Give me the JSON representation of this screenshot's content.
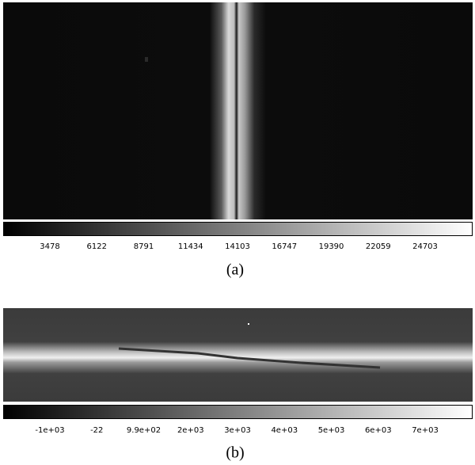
{
  "panels": [
    {
      "colorbar_ticks": [
        "3478",
        "6122",
        "8791",
        "11434",
        "14103",
        "16747",
        "19390",
        "22059",
        "24703"
      ],
      "caption": "(a)"
    },
    {
      "colorbar_ticks": [
        "-1e+03",
        "-22",
        "9.9e+02",
        "2e+03",
        "3e+03",
        "4e+03",
        "5e+03",
        "6e+03",
        "7e+03"
      ],
      "caption": "(b)"
    }
  ]
}
